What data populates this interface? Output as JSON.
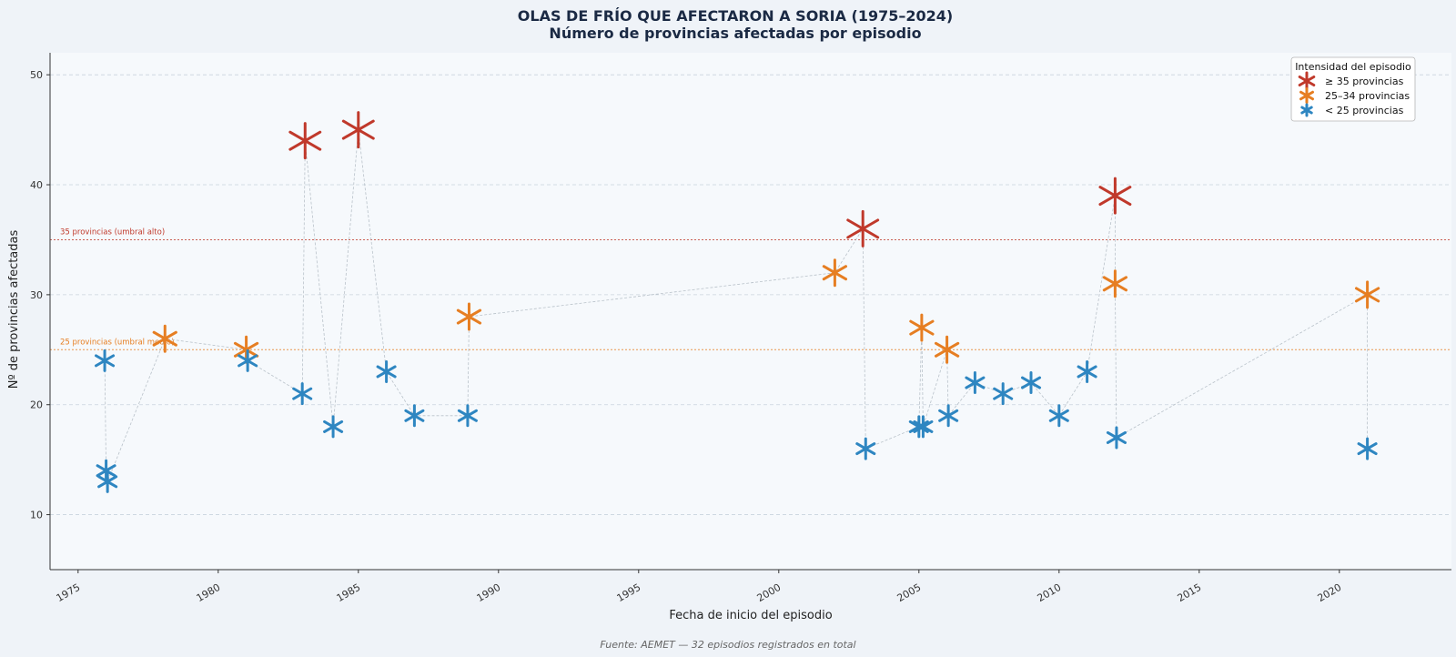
{
  "chart_data": {
    "type": "scatter",
    "title": "OLAS DE FRÍO QUE AFECTARON A SORIA (1975–2024)",
    "subtitle": "Número de provincias afectadas por episodio",
    "xlabel": "Fecha de inicio del episodio",
    "ylabel": "Nº de provincias afectadas",
    "xlim": [
      1974.0,
      2024.0
    ],
    "ylim": [
      5,
      52
    ],
    "x_ticks": [
      1975,
      1980,
      1985,
      1990,
      1995,
      2000,
      2005,
      2010,
      2015,
      2020
    ],
    "y_ticks": [
      10,
      20,
      30,
      40,
      50
    ],
    "grid": true,
    "legend_position": "top-right",
    "legend": {
      "title": "Intensidad del episodio",
      "entries": [
        {
          "label": "≥ 35 provincias",
          "color": "#c0392b"
        },
        {
          "label": "25–34 provincias",
          "color": "#e67e22"
        },
        {
          "label": "< 25 provincias",
          "color": "#2e86c1"
        }
      ]
    },
    "reference_lines": [
      {
        "value": 35,
        "label": "35 provincias (umbral alto)",
        "color": "#c0392b"
      },
      {
        "value": 25,
        "label": "25 provincias (umbral medio)",
        "color": "#e67e22"
      }
    ],
    "points": [
      {
        "x": 1975.95,
        "y": 24,
        "category": "low"
      },
      {
        "x": 1976.0,
        "y": 14,
        "category": "low"
      },
      {
        "x": 1976.05,
        "y": 13,
        "category": "low"
      },
      {
        "x": 1978.1,
        "y": 26,
        "category": "mid"
      },
      {
        "x": 1981.0,
        "y": 25,
        "category": "mid"
      },
      {
        "x": 1981.05,
        "y": 24,
        "category": "low"
      },
      {
        "x": 1983.0,
        "y": 21,
        "category": "low"
      },
      {
        "x": 1983.1,
        "y": 44,
        "category": "high"
      },
      {
        "x": 1984.1,
        "y": 18,
        "category": "low"
      },
      {
        "x": 1985.0,
        "y": 45,
        "category": "high"
      },
      {
        "x": 1986.0,
        "y": 23,
        "category": "low"
      },
      {
        "x": 1987.0,
        "y": 19,
        "category": "low"
      },
      {
        "x": 1988.9,
        "y": 19,
        "category": "low"
      },
      {
        "x": 1988.95,
        "y": 28,
        "category": "mid"
      },
      {
        "x": 2002.0,
        "y": 32,
        "category": "mid"
      },
      {
        "x": 2003.0,
        "y": 36,
        "category": "high"
      },
      {
        "x": 2003.1,
        "y": 16,
        "category": "low"
      },
      {
        "x": 2005.0,
        "y": 18,
        "category": "low"
      },
      {
        "x": 2005.1,
        "y": 27,
        "category": "mid"
      },
      {
        "x": 2005.15,
        "y": 18,
        "category": "low"
      },
      {
        "x": 2006.0,
        "y": 25,
        "category": "mid"
      },
      {
        "x": 2006.05,
        "y": 19,
        "category": "low"
      },
      {
        "x": 2007.0,
        "y": 22,
        "category": "low"
      },
      {
        "x": 2008.0,
        "y": 21,
        "category": "low"
      },
      {
        "x": 2009.0,
        "y": 22,
        "category": "low"
      },
      {
        "x": 2010.0,
        "y": 19,
        "category": "low"
      },
      {
        "x": 2011.0,
        "y": 23,
        "category": "low"
      },
      {
        "x": 2012.0,
        "y": 39,
        "category": "high"
      },
      {
        "x": 2012.0,
        "y": 31,
        "category": "mid"
      },
      {
        "x": 2012.05,
        "y": 17,
        "category": "low"
      },
      {
        "x": 2021.0,
        "y": 30,
        "category": "mid"
      },
      {
        "x": 2021.0,
        "y": 16,
        "category": "low"
      }
    ],
    "footer": "Fuente: AEMET — 32 episodios registrados en total"
  }
}
